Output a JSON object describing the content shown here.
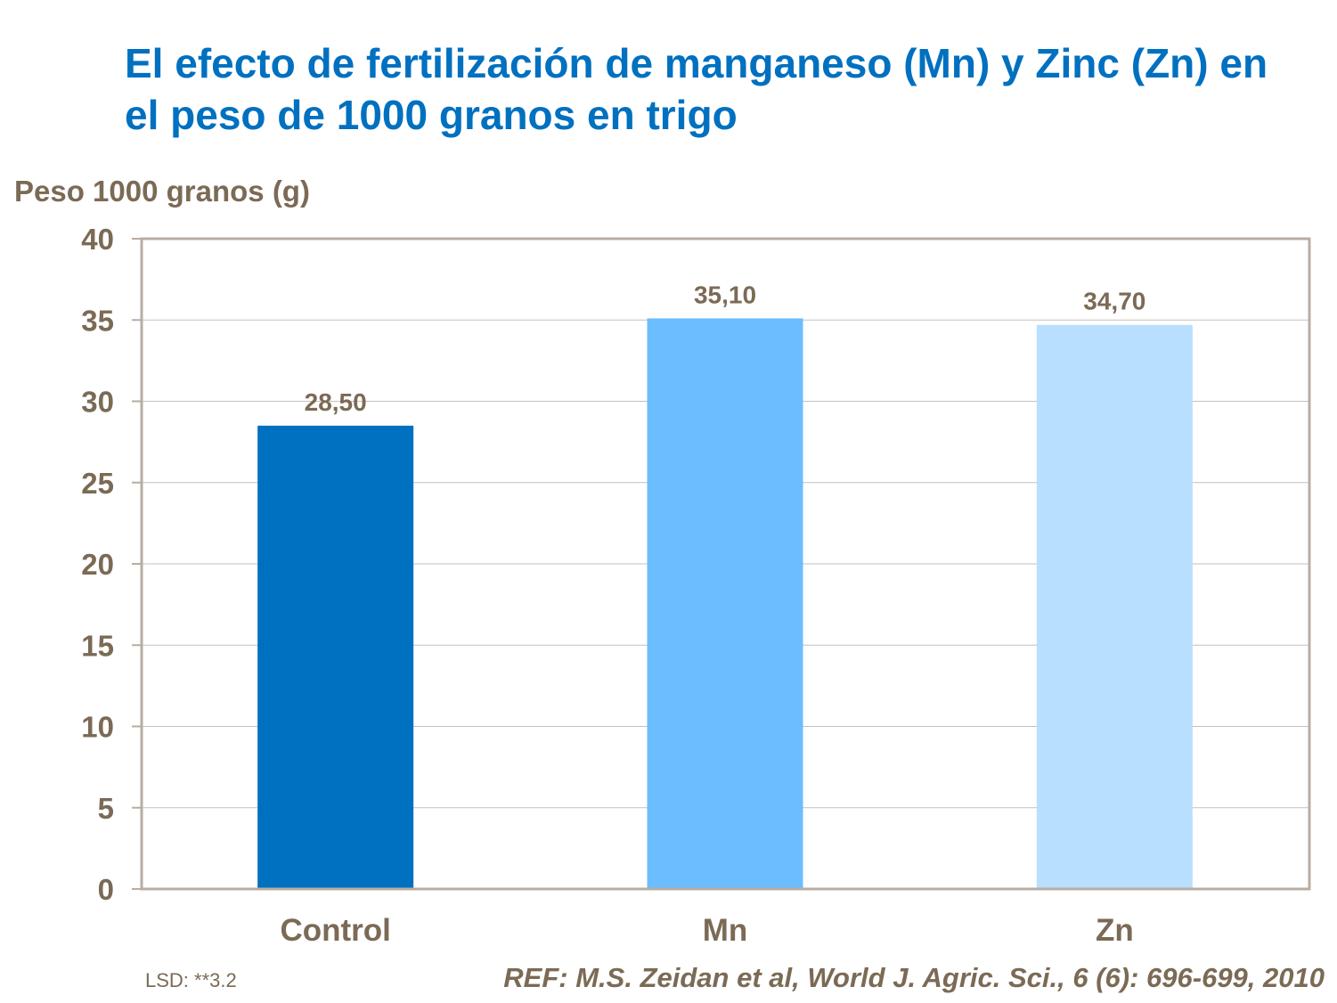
{
  "chart_data": {
    "type": "bar",
    "title": "El efecto de fertilización de manganeso (Mn) y Zinc (Zn) en el peso de 1000 granos en trigo",
    "ylabel": "Peso 1000 granos (g)",
    "xlabel": "",
    "categories": [
      "Control",
      "Mn",
      "Zn"
    ],
    "values": [
      28.5,
      35.1,
      34.7
    ],
    "data_labels": [
      "28,50",
      "35,10",
      "34,70"
    ],
    "colors": [
      "#0070C0",
      "#6BBDFF",
      "#B9DFFF"
    ],
    "ylim": [
      0,
      40
    ],
    "yticks": [
      0,
      5,
      10,
      15,
      20,
      25,
      30,
      35,
      40
    ],
    "grid": true,
    "legend": "none"
  },
  "footnote": "LSD: **3.2",
  "reference": "REF: M.S. Zeidan et al, World J. Agric. Sci., 6 (6): 696-699, 2010"
}
